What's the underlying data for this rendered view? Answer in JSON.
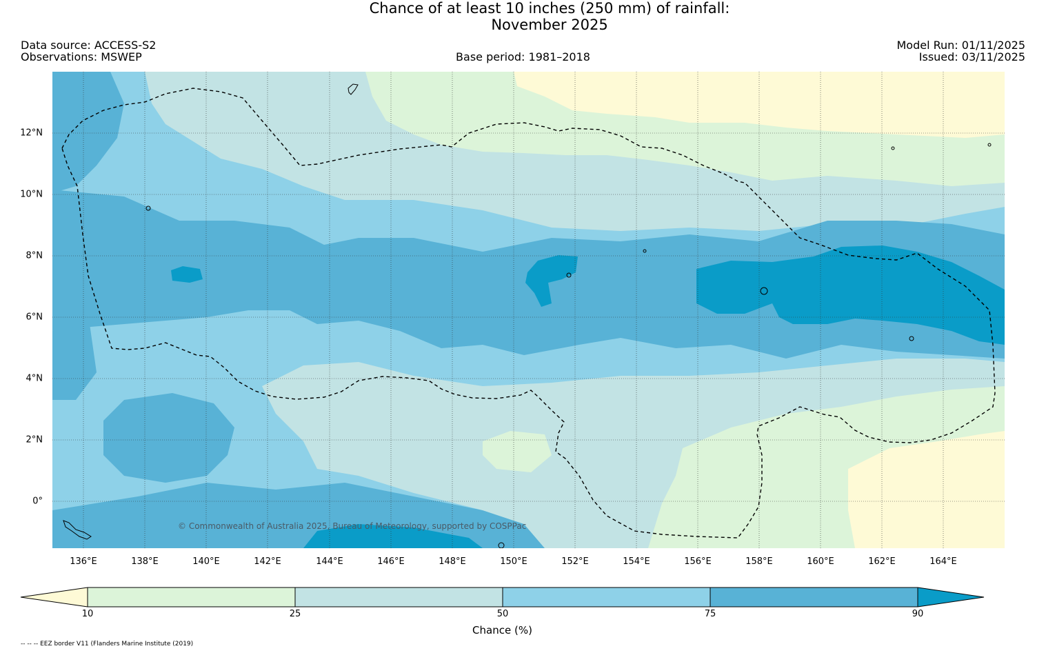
{
  "title": {
    "line1": "Chance of at least 10 inches (250  mm) of rainfall:",
    "line2": "November 2025"
  },
  "meta": {
    "data_source": "Data source: ACCESS-S2",
    "observations": "Observations: MSWEP",
    "base_period": "Base period: 1981–2018",
    "model_run": "Model Run: 01/11/2025",
    "issued": "Issued: 03/11/2025"
  },
  "map": {
    "lat_labels": [
      "12°N",
      "10°N",
      "8°N",
      "6°N",
      "4°N",
      "2°N",
      "0°"
    ],
    "lon_labels": [
      "136°E",
      "138°E",
      "140°E",
      "142°E",
      "144°E",
      "146°E",
      "148°E",
      "150°E",
      "152°E",
      "154°E",
      "156°E",
      "158°E",
      "160°E",
      "162°E",
      "164°E"
    ],
    "copyright": "© Commonwealth of Australia 2025, Bureau of Meteorology, supported by COSPPac"
  },
  "colorbar": {
    "ticks": [
      "10",
      "25",
      "50",
      "75",
      "90"
    ],
    "label": "Chance (%)",
    "colors": [
      "#fefad6",
      "#dcf4d9",
      "#c2e3e4",
      "#8ed1e8",
      "#58b2d6",
      "#0a9cc8"
    ]
  },
  "footnote": "-- -- -- EEZ border V11 (Flanders Marine Institute (2019)"
}
